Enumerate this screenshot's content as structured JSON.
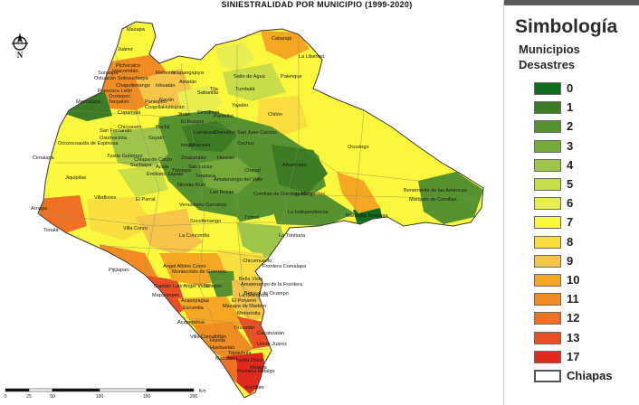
{
  "map": {
    "title": "SINIESTRALIDAD  POR MUNICIPIO  (1999-2020)",
    "labels": [
      {
        "text": "Mazapa"
      },
      {
        "text": "Juárez"
      },
      {
        "text": "Catazajá"
      },
      {
        "text": "Pichucalco"
      },
      {
        "text": "Ixtacomitán"
      },
      {
        "text": "Reforma"
      },
      {
        "text": "Sunuapa"
      },
      {
        "text": "Ostuacán"
      },
      {
        "text": "Solosuchiapa"
      },
      {
        "text": "Chapultenango"
      },
      {
        "text": "Francisco León"
      },
      {
        "text": "Ocotepec"
      },
      {
        "text": "Tecpatán"
      },
      {
        "text": "Copainalá"
      },
      {
        "text": "Ixtapangajoya"
      },
      {
        "text": "Amatán"
      },
      {
        "text": "Ixhuatán"
      },
      {
        "text": "Pantepec"
      },
      {
        "text": "Coapilla"
      },
      {
        "text": "Rayón"
      },
      {
        "text": "Huitiupán"
      },
      {
        "text": "Sabanilla"
      },
      {
        "text": "Tila"
      },
      {
        "text": "Salto de Agua"
      },
      {
        "text": "Palenque"
      },
      {
        "text": "La Libertad"
      },
      {
        "text": "Tumbalá"
      },
      {
        "text": "Yajalón"
      },
      {
        "text": "Simojovel"
      },
      {
        "text": "Pantelhó"
      },
      {
        "text": "Chilón"
      },
      {
        "text": "Jitotol"
      },
      {
        "text": "El Bosque"
      },
      {
        "text": "Mezcalapa"
      },
      {
        "text": "Chicoasén"
      },
      {
        "text": "Bochil"
      },
      {
        "text": "Larráinzar"
      },
      {
        "text": "Chenalhó"
      },
      {
        "text": "San Juan Cancuc"
      },
      {
        "text": "Oxchuc"
      },
      {
        "text": "San Fernando"
      },
      {
        "text": "Chiapa de Corzo"
      },
      {
        "text": "Osumacinta"
      },
      {
        "text": "Ocozocoautla de Espinosa"
      },
      {
        "text": "Soyaló"
      },
      {
        "text": "Ixtapa"
      },
      {
        "text": "Chamula"
      },
      {
        "text": "Zinacantán"
      },
      {
        "text": "Huixtán"
      },
      {
        "text": "Tuxtla Gutiérrez"
      },
      {
        "text": "Cintalapa"
      },
      {
        "text": "Suchiapa"
      },
      {
        "text": "Acala"
      },
      {
        "text": "San Lucas"
      },
      {
        "text": "Chanal"
      },
      {
        "text": "Altamirano"
      },
      {
        "text": "Ocosingo"
      },
      {
        "text": "Emiliano Zapata"
      },
      {
        "text": "Totolapa"
      },
      {
        "text": "Nicolás Ruíz"
      },
      {
        "text": "Amatenango del Valle"
      },
      {
        "text": "Teopisca"
      },
      {
        "text": "Jiquipilas"
      },
      {
        "text": "Villaflores"
      },
      {
        "text": "El Parral"
      },
      {
        "text": "Venustiano Carranza"
      },
      {
        "text": "Las Rosas"
      },
      {
        "text": "Comitán de Domínguez"
      },
      {
        "text": "Las Margaritas"
      },
      {
        "text": "Benemérito de las Américas"
      },
      {
        "text": "Marqués de Comillas"
      },
      {
        "text": "Arriaga"
      },
      {
        "text": "Socoltenango"
      },
      {
        "text": "Tzimol"
      },
      {
        "text": "La Independencia"
      },
      {
        "text": "Maravilla Tenejapa"
      },
      {
        "text": "Tonalá"
      },
      {
        "text": "Villa Corzo"
      },
      {
        "text": "La Concordia"
      },
      {
        "text": "La Trinitaria"
      },
      {
        "text": "Chicomuselo"
      },
      {
        "text": "Frontera Comalapa"
      },
      {
        "text": "Angel Albino Corzo"
      },
      {
        "text": "Montecristo de Guerrero"
      },
      {
        "text": "Pijijiapan"
      },
      {
        "text": "Bella Vista"
      },
      {
        "text": "Amatenango de la Frontera"
      },
      {
        "text": "Bejucal de Ocampo"
      },
      {
        "text": "La Grandeza"
      },
      {
        "text": "Capitán Luis Angel Vidal"
      },
      {
        "text": "Siltepec"
      },
      {
        "text": "Mapastepec"
      },
      {
        "text": "El Porvenir"
      },
      {
        "text": "Acacoyagua"
      },
      {
        "text": "Escuintla"
      },
      {
        "text": "Mazapa de Madero"
      },
      {
        "text": "Motozintla"
      },
      {
        "text": "Acapetahua"
      },
      {
        "text": "Villa Comaltitlán"
      },
      {
        "text": "Tuzantán"
      },
      {
        "text": "Huixtla"
      },
      {
        "text": "Cacahoatán"
      },
      {
        "text": "Unión Juárez"
      },
      {
        "text": "Huehuetán"
      },
      {
        "text": "Tapachula"
      },
      {
        "text": "Mazatán"
      },
      {
        "text": "Tuxtla Chico"
      },
      {
        "text": "Metapa"
      },
      {
        "text": "Frontera Hidalgo"
      },
      {
        "text": "Suchiate"
      }
    ],
    "scalebar": {
      "ticks": [
        "0",
        "25",
        "50",
        "100",
        "150",
        "200"
      ],
      "unit": "Km"
    }
  },
  "legend": {
    "title": "Simbología",
    "subtitle_1": "Municipios",
    "subtitle_2": "Desastres",
    "items": [
      {
        "label": "0",
        "color": "#0f6b1e"
      },
      {
        "label": "1",
        "color": "#3b7c24"
      },
      {
        "label": "2",
        "color": "#56922f"
      },
      {
        "label": "3",
        "color": "#75a93a"
      },
      {
        "label": "4",
        "color": "#9ec449"
      },
      {
        "label": "5",
        "color": "#c9dd4a"
      },
      {
        "label": "6",
        "color": "#e6ee52"
      },
      {
        "label": "7",
        "color": "#fbf73c"
      },
      {
        "label": "8",
        "color": "#fadd3e"
      },
      {
        "label": "9",
        "color": "#f6c448"
      },
      {
        "label": "10",
        "color": "#f5a623"
      },
      {
        "label": "11",
        "color": "#f08c22"
      },
      {
        "label": "12",
        "color": "#ee7124"
      },
      {
        "label": "13",
        "color": "#e94e24"
      },
      {
        "label": "17",
        "color": "#e02a1f"
      },
      {
        "label": "Chiapas",
        "color": "#ffffff"
      }
    ]
  }
}
